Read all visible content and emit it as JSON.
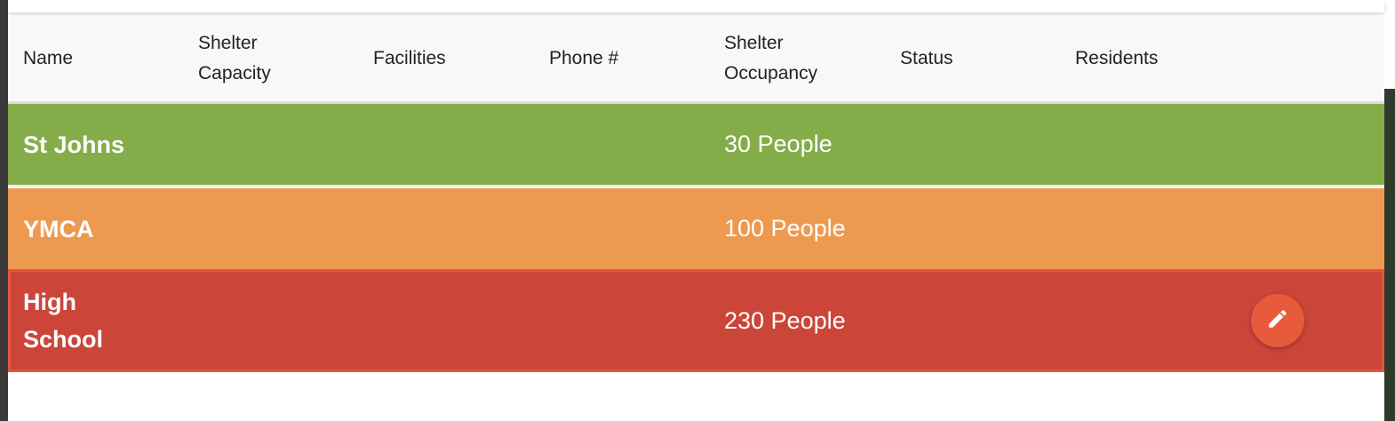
{
  "table": {
    "columns": [
      "Name",
      "Shelter\nCapacity",
      "Facilities",
      "Phone #",
      "Shelter\nOccupancy",
      "Status",
      "Residents"
    ],
    "rows": [
      {
        "name": "St Johns",
        "occupancy": "30 People",
        "status_color": "#84ad4a"
      },
      {
        "name": "YMCA",
        "occupancy": "100 People",
        "status_color": "#ed9a50"
      },
      {
        "name": "High\nSchool",
        "occupancy": "230 People",
        "status_color": "#cb4539"
      }
    ]
  },
  "actions": {
    "edit_icon": "pencil-icon",
    "edit_button_color": "#e85a3c"
  }
}
